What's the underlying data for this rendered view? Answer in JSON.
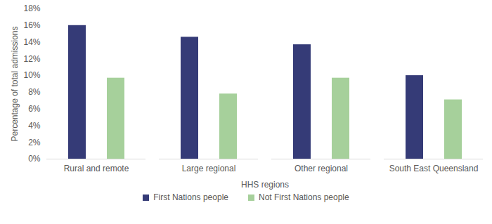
{
  "chart_data": {
    "type": "bar",
    "x_label": "HHS regions",
    "y_label": "Percentage of total admissions",
    "categories": [
      "Rural and remote",
      "Large regional",
      "Other regional",
      "South East Queensland"
    ],
    "series": [
      {
        "name": "First Nations people",
        "color": "#353b77",
        "values": [
          16.0,
          14.6,
          13.7,
          10.0
        ]
      },
      {
        "name": "Not First Nations people",
        "color": "#a6d09b",
        "values": [
          9.7,
          7.8,
          9.7,
          7.1
        ]
      }
    ],
    "ylim": [
      0,
      18
    ],
    "yticks": [
      {
        "value": 0,
        "label": "0%"
      },
      {
        "value": 2,
        "label": "2%"
      },
      {
        "value": 4,
        "label": "4%"
      },
      {
        "value": 6,
        "label": "6%"
      },
      {
        "value": 8,
        "label": "8%"
      },
      {
        "value": 10,
        "label": "10%"
      },
      {
        "value": 12,
        "label": "12%"
      },
      {
        "value": 14,
        "label": "14%"
      },
      {
        "value": 16,
        "label": "16%"
      },
      {
        "value": 18,
        "label": "18%"
      }
    ],
    "grid": false,
    "legend": "bottom"
  }
}
